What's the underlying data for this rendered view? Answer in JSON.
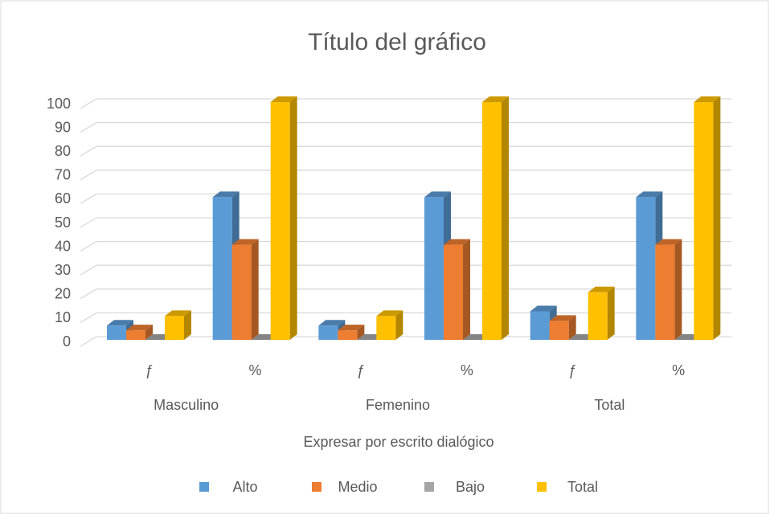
{
  "chart_data": {
    "type": "bar3d",
    "title": "Título del gráfico",
    "x_label": "Expresar por escrito dialógico",
    "categories": [
      "ƒ",
      "%",
      "ƒ",
      "%",
      "ƒ",
      "%"
    ],
    "category_groups": [
      "Masculino",
      "Femenino",
      "Total"
    ],
    "series": [
      {
        "name": "Alto",
        "color": "#5b9bd5",
        "values": [
          6,
          60,
          6,
          60,
          12,
          60
        ]
      },
      {
        "name": "Medio",
        "color": "#ed7d31",
        "values": [
          4,
          40,
          4,
          40,
          8,
          40
        ]
      },
      {
        "name": "Bajo",
        "color": "#a5a5a5",
        "values": [
          0,
          0,
          0,
          0,
          0,
          0
        ]
      },
      {
        "name": "Total",
        "color": "#ffc000",
        "values": [
          10,
          100,
          10,
          100,
          20,
          100
        ]
      }
    ],
    "ylim": [
      0,
      100
    ],
    "yticks": [
      0,
      10,
      20,
      30,
      40,
      50,
      60,
      70,
      80,
      90,
      100
    ],
    "grid": true,
    "legend": "bottom"
  }
}
